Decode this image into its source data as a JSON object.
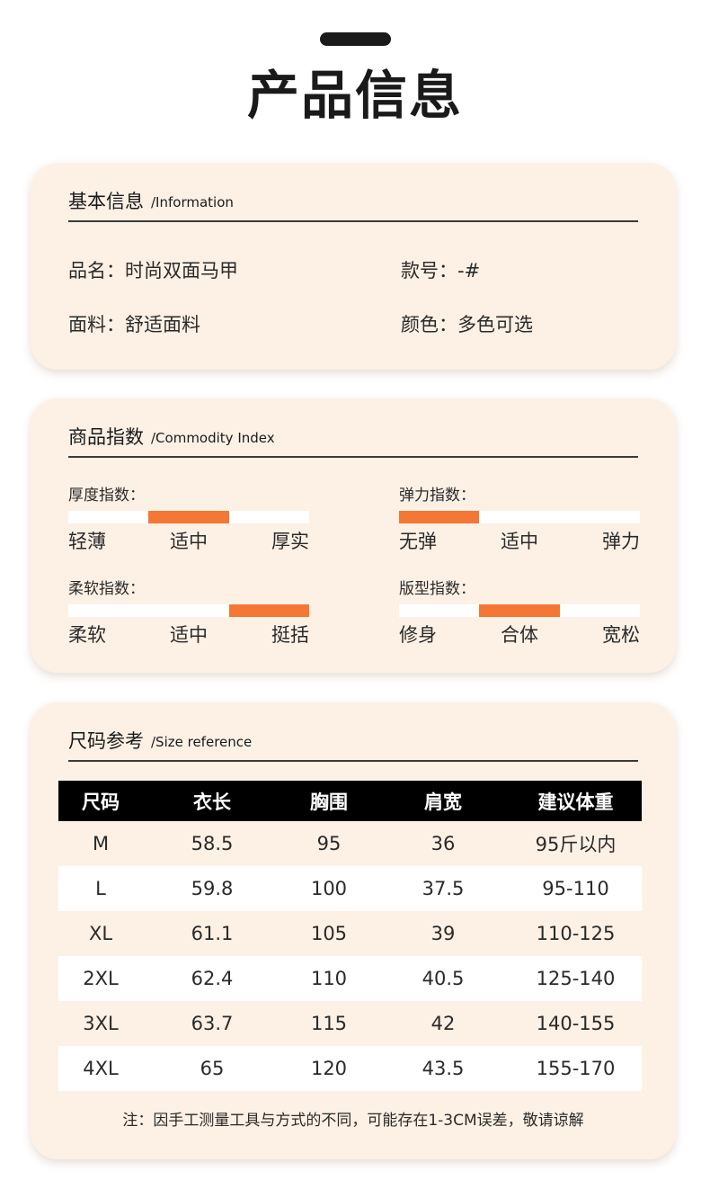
{
  "page_title": "产品信息",
  "basic": {
    "title_zh": "基本信息",
    "title_en": "/Information",
    "name": "品名：时尚双面马甲",
    "model": "款号：-#",
    "fabric": "面料：舒适面料",
    "color": "颜色：多色可选"
  },
  "index": {
    "title_zh": "商品指数",
    "title_en": "/Commodity Index",
    "items": [
      {
        "label": "厚度指数：",
        "scale": [
          "轻薄",
          "适中",
          "厚实"
        ],
        "level": 2
      },
      {
        "label": "弹力指数：",
        "scale": [
          "无弹",
          "适中",
          "弹力"
        ],
        "level": 1
      },
      {
        "label": "柔软指数：",
        "scale": [
          "柔软",
          "适中",
          "挺括"
        ],
        "level": 3
      },
      {
        "label": "版型指数：",
        "scale": [
          "修身",
          "合体",
          "宽松"
        ],
        "level": 2
      }
    ]
  },
  "size": {
    "title_zh": "尺码参考",
    "title_en": "/Size reference",
    "headers": [
      "尺码",
      "衣长",
      "胸围",
      "肩宽",
      "建议体重"
    ],
    "rows": [
      [
        "M",
        "58.5",
        "95",
        "36",
        "95斤以内"
      ],
      [
        "L",
        "59.8",
        "100",
        "37.5",
        "95-110"
      ],
      [
        "XL",
        "61.1",
        "105",
        "39",
        "110-125"
      ],
      [
        "2XL",
        "62.4",
        "110",
        "40.5",
        "125-140"
      ],
      [
        "3XL",
        "63.7",
        "115",
        "42",
        "140-155"
      ],
      [
        "4XL",
        "65",
        "120",
        "43.5",
        "155-170"
      ]
    ],
    "note": "注：因手工测量工具与方式的不同，可能存在1-3CM误差，敬请谅解"
  },
  "colors": {
    "card_bg": "#fdf1e6",
    "accent": "#f47735",
    "header_bg": "#000000"
  }
}
